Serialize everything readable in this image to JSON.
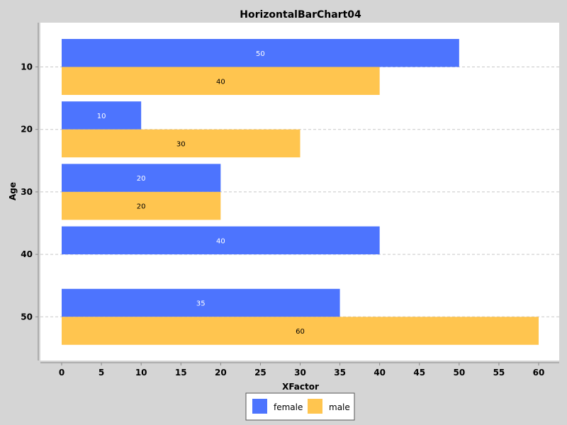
{
  "chart_data": {
    "type": "bar",
    "orientation": "horizontal",
    "title": "HorizontalBarChart04",
    "xlabel": "XFactor",
    "ylabel": "Age",
    "categories": [
      "10",
      "20",
      "30",
      "40",
      "50"
    ],
    "series": [
      {
        "name": "female",
        "color": "#4d74fe",
        "label_color": "#ffffff",
        "values": [
          50,
          10,
          20,
          40,
          35
        ]
      },
      {
        "name": "male",
        "color": "#ffc54f",
        "label_color": "#000000",
        "values": [
          40,
          30,
          20,
          null,
          60
        ]
      }
    ],
    "xlim": [
      0,
      60
    ],
    "xticks": [
      0,
      5,
      10,
      15,
      20,
      25,
      30,
      35,
      40,
      45,
      50,
      55,
      60
    ],
    "grid": "horizontal-dashed",
    "legend_position": "bottom"
  }
}
